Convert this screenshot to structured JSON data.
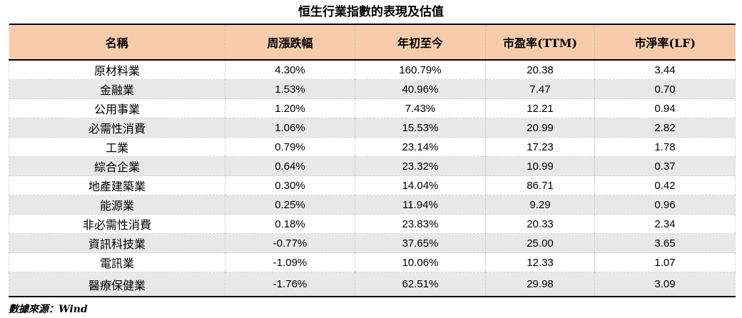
{
  "title": "恒生行業指數的表現及估值",
  "source_note": "數據來源：Wind",
  "colors": {
    "header_bg": "#F8CBAD",
    "stripe_bg": "#E8E8E8",
    "border_dark": "#000000",
    "border_dashed": "#D2D2D2"
  },
  "table": {
    "columns": [
      "名稱",
      "周漲跌幅",
      "年初至今",
      "市盈率(TTM)",
      "市淨率(LF)"
    ],
    "rows": [
      [
        "原材料業",
        "4.30%",
        "160.79%",
        "20.38",
        "3.44"
      ],
      [
        "金融業",
        "1.53%",
        "40.96%",
        "7.47",
        "0.70"
      ],
      [
        "公用事業",
        "1.20%",
        "7.43%",
        "12.21",
        "0.94"
      ],
      [
        "必需性消費",
        "1.06%",
        "15.53%",
        "20.99",
        "2.82"
      ],
      [
        "工業",
        "0.79%",
        "23.14%",
        "17.23",
        "1.78"
      ],
      [
        "綜合企業",
        "0.64%",
        "23.32%",
        "10.99",
        "0.37"
      ],
      [
        "地產建築業",
        "0.30%",
        "14.04%",
        "86.71",
        "0.42"
      ],
      [
        "能源業",
        "0.25%",
        "11.94%",
        "9.29",
        "0.96"
      ],
      [
        "非必需性消費",
        "0.18%",
        "23.83%",
        "20.33",
        "2.34"
      ],
      [
        "資訊科技業",
        "-0.77%",
        "37.65%",
        "25.00",
        "3.65"
      ],
      [
        "電訊業",
        "-1.09%",
        "10.06%",
        "12.33",
        "1.07"
      ],
      [
        "醫療保健業",
        "-1.76%",
        "62.51%",
        "29.98",
        "3.09"
      ]
    ]
  }
}
